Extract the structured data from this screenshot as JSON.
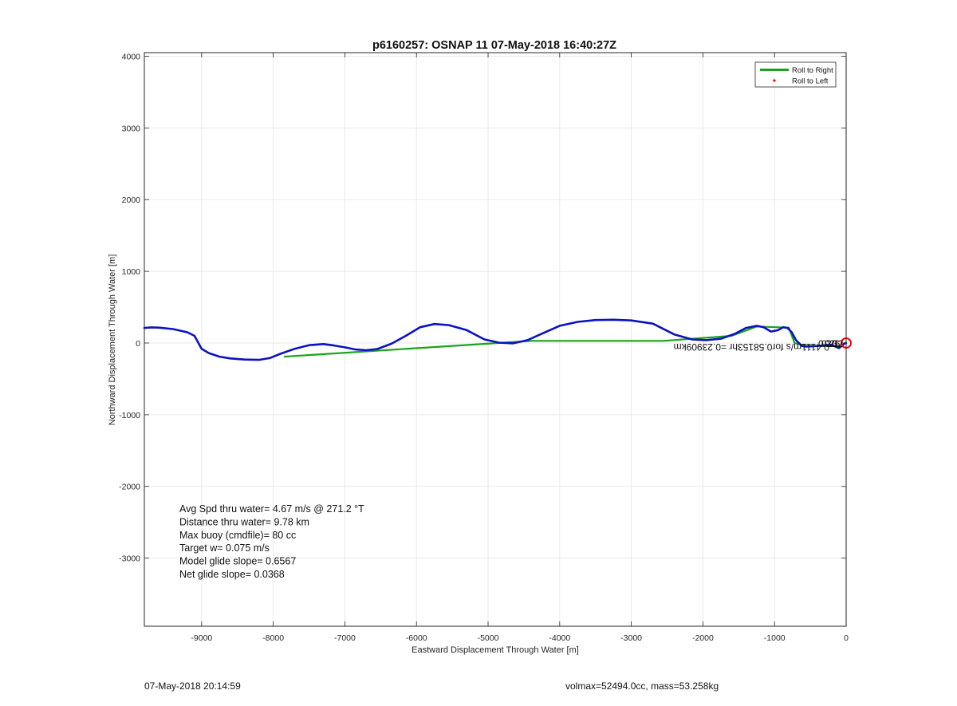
{
  "chart_data": {
    "type": "line",
    "title": "p6160257: OSNAP 11 07-May-2018 16:40:27Z",
    "xlabel": "Eastward Displacement Through Water [m]",
    "ylabel": "Northward Displacement Through Water [m]",
    "xlim": [
      -9800,
      0
    ],
    "ylim": [
      -3950,
      4050
    ],
    "x_ticks": [
      -9000,
      -8000,
      -7000,
      -6000,
      -5000,
      -4000,
      -3000,
      -2000,
      -1000,
      0
    ],
    "x_tick_labels": [
      "-9000",
      "-8000",
      "-7000",
      "-6000",
      "-5000",
      "-4000",
      "-3000",
      "-2000",
      "-1000",
      "0"
    ],
    "y_ticks": [
      4000,
      3000,
      2000,
      1000,
      0,
      -1000,
      -2000,
      -3000
    ],
    "y_tick_labels": [
      "4000",
      "3000",
      "2000",
      "1000",
      "0",
      "-1000",
      "-2000",
      "-3000"
    ],
    "grid": true,
    "legend_position": "top-right",
    "legend": [
      {
        "label": "Roll to Right",
        "color": "#1aa31a",
        "marker": "line"
      },
      {
        "label": "Roll to Left",
        "color": "#ff0000",
        "marker": "dot"
      }
    ],
    "series": [
      {
        "name": "Roll to Right",
        "color": "#1aa31a",
        "x": [
          -7850,
          -4400,
          -2550,
          -1600,
          -1250,
          -800,
          -720,
          -560,
          -330,
          -80
        ],
        "y": [
          -190,
          30,
          30,
          100,
          230,
          215,
          0,
          -40,
          -40,
          -40
        ]
      },
      {
        "color": "#0b12c2",
        "x": [
          -9800,
          -9700,
          -9600,
          -9400,
          -9200,
          -9100,
          -9000,
          -8900,
          -8750,
          -8600,
          -8400,
          -8200,
          -8050,
          -7900,
          -7700,
          -7500,
          -7300,
          -7150,
          -7000,
          -6850,
          -6700,
          -6550,
          -6350,
          -6150,
          -5950,
          -5750,
          -5550,
          -5300,
          -5050,
          -4850,
          -4650,
          -4450,
          -4250,
          -4000,
          -3750,
          -3500,
          -3250,
          -3000,
          -2700,
          -2400,
          -2150,
          -1950,
          -1750,
          -1550,
          -1400,
          -1250,
          -1150,
          -1050,
          -950,
          -880,
          -820,
          -760,
          -700,
          -620,
          -560,
          -450,
          -330,
          -260,
          -200,
          -150,
          -100,
          -60,
          -30,
          0
        ],
        "y": [
          210,
          218,
          215,
          195,
          150,
          100,
          -80,
          -140,
          -190,
          -215,
          -230,
          -235,
          -210,
          -150,
          -80,
          -30,
          -15,
          -35,
          -60,
          -90,
          -100,
          -85,
          -10,
          100,
          220,
          265,
          250,
          180,
          50,
          5,
          -5,
          40,
          130,
          240,
          295,
          320,
          325,
          315,
          270,
          120,
          50,
          40,
          60,
          130,
          210,
          240,
          220,
          160,
          180,
          220,
          210,
          150,
          40,
          -40,
          -50,
          -45,
          -35,
          -30,
          -25,
          -50,
          -70,
          -40,
          -10,
          0
        ]
      },
      {
        "name": "Roll to Left",
        "color": "#ff0000",
        "x": [
          0
        ],
        "y": [
          0
        ]
      }
    ],
    "annotations": [
      {
        "text": "Avg Spd thru water=  4.67 m/s @ 271.2 °T"
      },
      {
        "text": "Distance thru water=  9.78 km"
      },
      {
        "text": "Max buoy (cmdfile)= 80 cc"
      },
      {
        "text": "Target w= 0.075 m/s"
      },
      {
        "text": "Model glide slope= 0.6567"
      },
      {
        "text": "Net glide slope= 0.0368"
      }
    ],
    "rotated_annotation": "0.4111m/s for0.58153hr =0.23909km",
    "overlap_annotations": [
      "0.20",
      "0.26",
      "0.32"
    ]
  },
  "footer": {
    "left": "07-May-2018 20:14:59",
    "right": "volmax=52494.0cc, mass=53.258kg"
  }
}
